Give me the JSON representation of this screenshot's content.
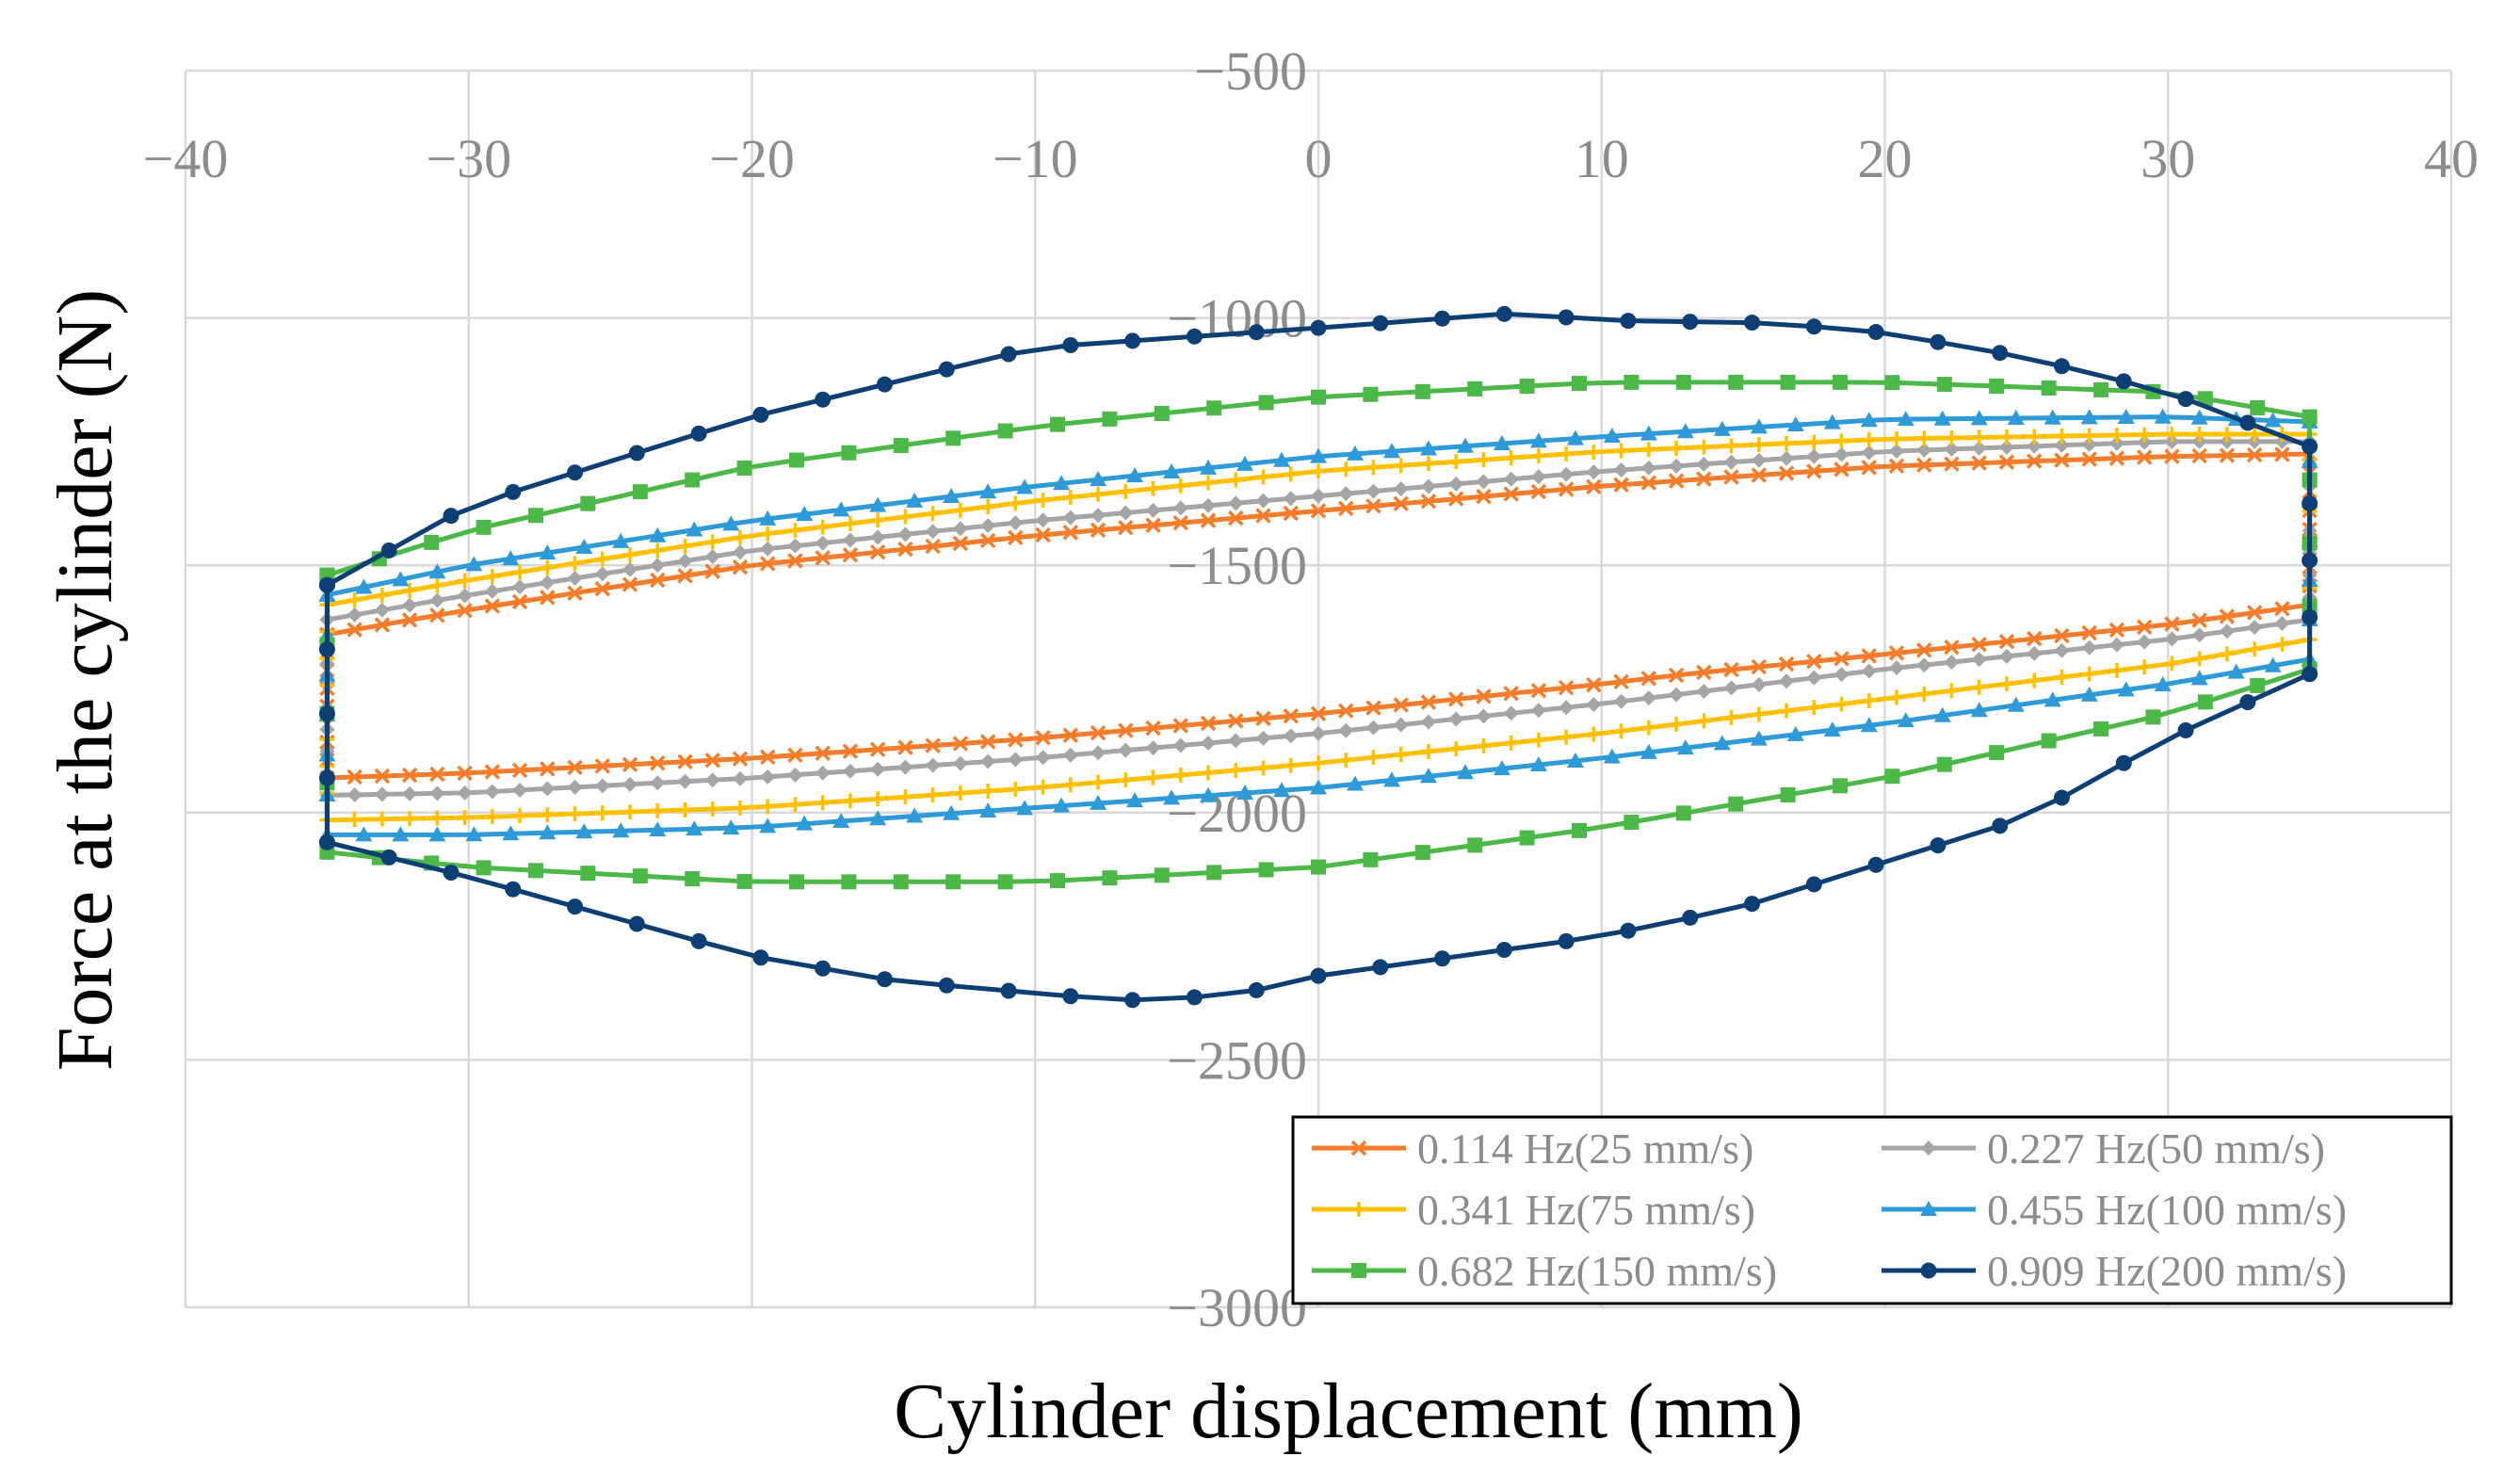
{
  "chart_data": {
    "type": "line",
    "xlabel": "Cylinder displacement (mm)",
    "ylabel": "Force at the cylinder (N)",
    "xlim": [
      -40,
      40
    ],
    "ylim": [
      -3000,
      -500
    ],
    "x_ticks": [
      -40,
      -30,
      -20,
      -10,
      0,
      10,
      20,
      30,
      40
    ],
    "x_tick_labels": [
      "−40",
      "−30",
      "−20",
      "−10",
      "0",
      "10",
      "20",
      "30",
      "40"
    ],
    "y_ticks": [
      -500,
      -1000,
      -1500,
      -2000,
      -2500,
      -3000
    ],
    "y_tick_labels": [
      "−500",
      "−1000",
      "−1500",
      "−2000",
      "−2500",
      "−3000"
    ],
    "x_axis_position": "top",
    "grid": true,
    "legend_position": "bottom-right",
    "series": [
      {
        "name": "0.114 Hz(25 mm/s)",
        "color": "#F47C2A",
        "marker": "x",
        "n_points": 160,
        "upper": [
          [
            -35,
            -1640
          ],
          [
            -30,
            -1590
          ],
          [
            -20,
            -1500
          ],
          [
            -10,
            -1440
          ],
          [
            0,
            -1390
          ],
          [
            10,
            -1340
          ],
          [
            20,
            -1300
          ],
          [
            30,
            -1280
          ],
          [
            35,
            -1275
          ]
        ],
        "lower": [
          [
            35,
            -1580
          ],
          [
            30,
            -1620
          ],
          [
            20,
            -1680
          ],
          [
            13,
            -1720
          ],
          [
            10,
            -1740
          ],
          [
            0,
            -1800
          ],
          [
            -10,
            -1850
          ],
          [
            -20,
            -1890
          ],
          [
            -30,
            -1920
          ],
          [
            -35,
            -1930
          ]
        ]
      },
      {
        "name": "0.227 Hz(50 mm/s)",
        "color": "#A5A5A5",
        "marker": "diamond",
        "n_points": 160,
        "upper": [
          [
            -35,
            -1610
          ],
          [
            -30,
            -1560
          ],
          [
            -20,
            -1470
          ],
          [
            -10,
            -1410
          ],
          [
            0,
            -1360
          ],
          [
            10,
            -1310
          ],
          [
            20,
            -1270
          ],
          [
            30,
            -1250
          ],
          [
            35,
            -1250
          ]
        ],
        "lower": [
          [
            35,
            -1610
          ],
          [
            30,
            -1650
          ],
          [
            20,
            -1710
          ],
          [
            10,
            -1780
          ],
          [
            0,
            -1840
          ],
          [
            -10,
            -1890
          ],
          [
            -20,
            -1930
          ],
          [
            -30,
            -1960
          ],
          [
            -35,
            -1965
          ]
        ]
      },
      {
        "name": "0.341 Hz(75 mm/s)",
        "color": "#FFC000",
        "marker": "plus",
        "n_points": 160,
        "upper": [
          [
            -35,
            -1580
          ],
          [
            -30,
            -1530
          ],
          [
            -20,
            -1440
          ],
          [
            -10,
            -1370
          ],
          [
            0,
            -1310
          ],
          [
            10,
            -1270
          ],
          [
            20,
            -1245
          ],
          [
            30,
            -1235
          ],
          [
            35,
            -1235
          ]
        ],
        "lower": [
          [
            35,
            -1650
          ],
          [
            30,
            -1700
          ],
          [
            20,
            -1770
          ],
          [
            10,
            -1840
          ],
          [
            0,
            -1900
          ],
          [
            -10,
            -1950
          ],
          [
            -20,
            -1990
          ],
          [
            -30,
            -2010
          ],
          [
            -35,
            -2015
          ]
        ]
      },
      {
        "name": "0.455 Hz(100 mm/s)",
        "color": "#2E9AD8",
        "marker": "triangle",
        "n_points": 120,
        "upper": [
          [
            -35,
            -1560
          ],
          [
            -30,
            -1500
          ],
          [
            -20,
            -1410
          ],
          [
            -10,
            -1340
          ],
          [
            0,
            -1280
          ],
          [
            10,
            -1240
          ],
          [
            20,
            -1205
          ],
          [
            30,
            -1200
          ],
          [
            35,
            -1210
          ]
        ],
        "lower": [
          [
            35,
            -1690
          ],
          [
            30,
            -1740
          ],
          [
            20,
            -1820
          ],
          [
            10,
            -1890
          ],
          [
            0,
            -1950
          ],
          [
            -10,
            -1990
          ],
          [
            -20,
            -2030
          ],
          [
            -30,
            -2045
          ],
          [
            -35,
            -2045
          ]
        ]
      },
      {
        "name": "0.682 Hz(150 mm/s)",
        "color": "#4CB848",
        "marker": "square",
        "n_points": 84,
        "upper": [
          [
            -35,
            -1520
          ],
          [
            -30,
            -1430
          ],
          [
            -20,
            -1300
          ],
          [
            -10,
            -1220
          ],
          [
            0,
            -1160
          ],
          [
            10,
            -1130
          ],
          [
            20,
            -1130
          ],
          [
            30,
            -1150
          ],
          [
            35,
            -1200
          ]
        ],
        "lower": [
          [
            35,
            -1710
          ],
          [
            30,
            -1800
          ],
          [
            20,
            -1930
          ],
          [
            10,
            -2030
          ],
          [
            0,
            -2110
          ],
          [
            -10,
            -2140
          ],
          [
            -20,
            -2140
          ],
          [
            -30,
            -2110
          ],
          [
            -35,
            -2080
          ]
        ]
      },
      {
        "name": "0.909 Hz(200 mm/s)",
        "color": "#0E3F74",
        "marker": "circle",
        "n_points": 70,
        "upper": [
          [
            -35,
            -1540
          ],
          [
            -30,
            -1380
          ],
          [
            -20,
            -1200
          ],
          [
            -10,
            -1060
          ],
          [
            0,
            -1020
          ],
          [
            7,
            -990
          ],
          [
            10,
            -1005
          ],
          [
            16,
            -1010
          ],
          [
            20,
            -1030
          ],
          [
            25,
            -1080
          ],
          [
            30,
            -1150
          ],
          [
            35,
            -1260
          ]
        ],
        "lower": [
          [
            35,
            -1720
          ],
          [
            30,
            -1850
          ],
          [
            25,
            -2010
          ],
          [
            20,
            -2100
          ],
          [
            15,
            -2190
          ],
          [
            10,
            -2250
          ],
          [
            5,
            -2290
          ],
          [
            0,
            -2330
          ],
          [
            -3,
            -2370
          ],
          [
            -7,
            -2380
          ],
          [
            -15,
            -2340
          ],
          [
            -20,
            -2290
          ],
          [
            -25,
            -2210
          ],
          [
            -30,
            -2130
          ],
          [
            -35,
            -2060
          ]
        ]
      }
    ]
  }
}
